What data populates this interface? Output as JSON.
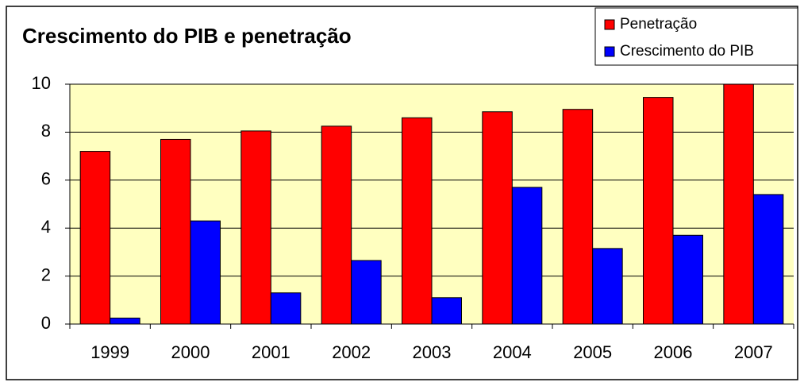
{
  "chart_data": {
    "type": "bar",
    "title": "Crescimento do PIB e penetração",
    "categories": [
      "1999",
      "2000",
      "2001",
      "2002",
      "2003",
      "2004",
      "2005",
      "2006",
      "2007"
    ],
    "series": [
      {
        "name": "Penetração",
        "color": "#ff0000",
        "values": [
          7.2,
          7.7,
          8.05,
          8.25,
          8.6,
          8.85,
          8.95,
          9.45,
          10
        ]
      },
      {
        "name": "Crescimento do PIB",
        "color": "#0000ff",
        "values": [
          0.25,
          4.3,
          1.3,
          2.65,
          1.1,
          5.7,
          3.15,
          3.7,
          5.4
        ]
      }
    ],
    "ylim": [
      0,
      10
    ],
    "yticks": [
      0,
      2,
      4,
      6,
      8,
      10
    ],
    "grid": true,
    "plot_background": "#ffffc0",
    "legend": "top-right"
  }
}
